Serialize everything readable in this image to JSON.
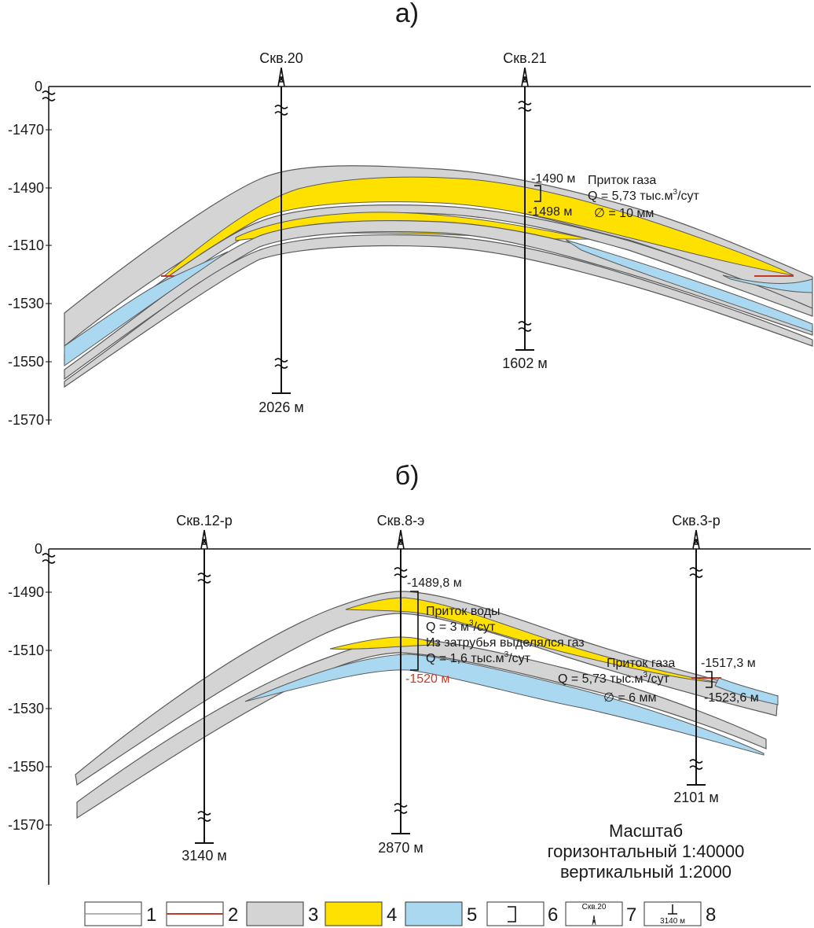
{
  "panel_a": {
    "title": "а)",
    "depth_ticks": [
      "0",
      "-1470",
      "-1490",
      "-1510",
      "-1530",
      "-1550",
      "-1570"
    ],
    "wells": [
      {
        "name": "Скв.20",
        "bottom": "2026 м"
      },
      {
        "name": "Скв.21",
        "bottom": "1602 м"
      }
    ],
    "test": {
      "top": "-1490 м",
      "bottom": "-1498 м",
      "line1": "Приток газа",
      "line2": "Q = 5,73 тыс.м",
      "line2_sup": "3",
      "line2_end": "/сут",
      "line3": "∅ = 10 мм"
    }
  },
  "panel_b": {
    "title": "б)",
    "depth_ticks": [
      "0",
      "-1490",
      "-1510",
      "-1530",
      "-1550",
      "-1570"
    ],
    "wells": [
      {
        "name": "Скв.12-р",
        "bottom": "3140 м"
      },
      {
        "name": "Скв.8-э",
        "bottom": "2870 м"
      },
      {
        "name": "Скв.3-р",
        "bottom": "2101 м"
      }
    ],
    "test_8e": {
      "top": "-1489,8 м",
      "bottom": "-1520 м",
      "water": "Приток воды",
      "water_q": "Q = 3 м",
      "water_q_sup": "3",
      "water_q_end": "/сут",
      "gas_note": "Из затрубья выделялся газ",
      "gas_q": "Q = 1,6 тыс.м",
      "gas_q_sup": "3",
      "gas_q_end": "/сут"
    },
    "test_3r": {
      "top": "-1517,3 м",
      "bottom": "-1523,6 м",
      "line1": "Приток газа",
      "line2": "Q = 5,73 тыс.м",
      "line2_sup": "3",
      "line2_end": "/сут",
      "line3": "∅ = 6 мм"
    }
  },
  "scale": {
    "title": "Масштаб",
    "horizontal": "горизонтальный 1:40000",
    "vertical": "вертикальный 1:2000"
  },
  "legend": {
    "items": [
      "1",
      "2",
      "3",
      "4",
      "5",
      "6",
      "7",
      "8"
    ],
    "well_sample": "Скв.20",
    "depth_sample": "3140 м"
  },
  "colors": {
    "gas": "#ffe100",
    "water": "#a9d8f0",
    "clay": "#d4d4d4",
    "gwc_line": "#c0392b",
    "red_text": "#d03a1f"
  }
}
